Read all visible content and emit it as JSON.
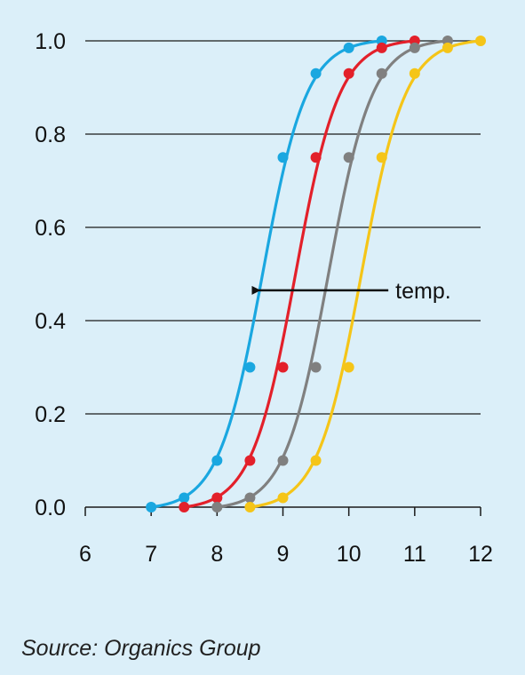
{
  "chart_data": {
    "type": "line",
    "xlim": [
      6,
      12
    ],
    "ylim": [
      0,
      1
    ],
    "x_ticks": [
      "6",
      "7",
      "8",
      "9",
      "10",
      "11",
      "12"
    ],
    "y_ticks": [
      "0.0",
      "0.2",
      "0.4",
      "0.6",
      "0.8",
      "1.0"
    ],
    "grid": "horizontal",
    "series": [
      {
        "color": "#1aa7e0",
        "x": [
          7,
          7.5,
          8,
          8.5,
          9,
          9.5,
          10,
          10.5
        ],
        "y": [
          0,
          0.02,
          0.1,
          0.3,
          0.75,
          0.93,
          0.985,
          1.0
        ]
      },
      {
        "color": "#e3202a",
        "x": [
          7.5,
          8,
          8.5,
          9,
          9.5,
          10,
          10.5,
          11
        ],
        "y": [
          0,
          0.02,
          0.1,
          0.3,
          0.75,
          0.93,
          0.985,
          1.0
        ]
      },
      {
        "color": "#808080",
        "x": [
          8,
          8.5,
          9,
          9.5,
          10,
          10.5,
          11,
          11.5
        ],
        "y": [
          0,
          0.02,
          0.1,
          0.3,
          0.75,
          0.93,
          0.985,
          1.0
        ]
      },
      {
        "color": "#f5c518",
        "x": [
          8.5,
          9,
          9.5,
          10,
          10.5,
          11,
          11.5,
          12
        ],
        "y": [
          0,
          0.02,
          0.1,
          0.3,
          0.75,
          0.93,
          0.985,
          1.0
        ]
      }
    ],
    "annotation": {
      "text": "temp.",
      "arrow_from_x": 10.6,
      "arrow_to_x": 8.5,
      "arrow_y": 0.465
    }
  },
  "source": "Source: Organics Group"
}
